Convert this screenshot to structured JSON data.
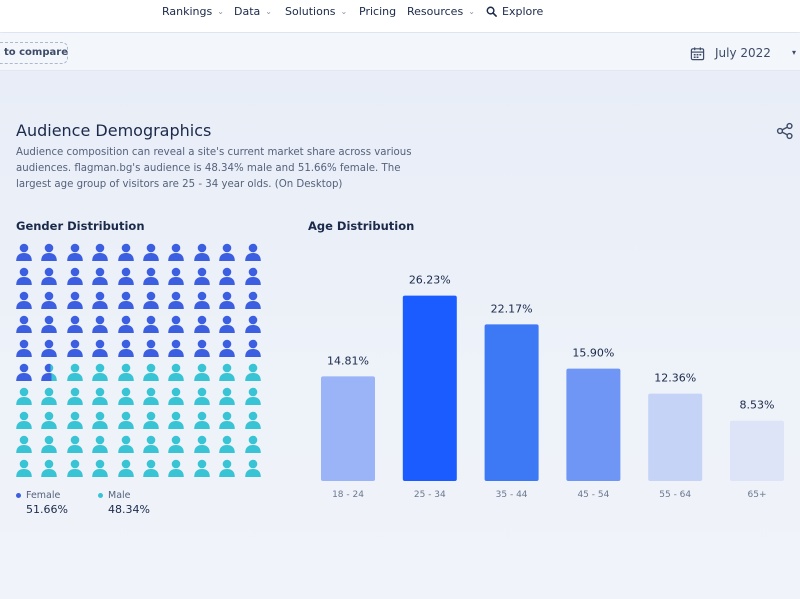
{
  "nav": {
    "items": [
      {
        "label": "Rankings",
        "has_dropdown": true
      },
      {
        "label": "Data",
        "has_dropdown": true
      },
      {
        "label": "Solutions",
        "has_dropdown": true
      },
      {
        "label": "Pricing",
        "has_dropdown": false
      },
      {
        "label": "Resources",
        "has_dropdown": true
      }
    ],
    "explore_label": "Explore",
    "explore_icon": "search-icon"
  },
  "toolbar": {
    "compare_label": "to compare",
    "date_label": "July 2022",
    "date_icon": "calendar-icon"
  },
  "section": {
    "title": "Audience Demographics",
    "description": "Audience composition can reveal a site's current market share across various audiences. flagman.bg's audience is 48.34% male and 51.66% female. The largest age group of visitors are 25 - 34 year olds. (On Desktop)",
    "share_icon": "share-icon"
  },
  "gender": {
    "title": "Gender Distribution",
    "female": {
      "label": "Female",
      "value": "51.66%",
      "share": 0.5166,
      "color": "#3b5fe0"
    },
    "male": {
      "label": "Male",
      "value": "48.34%",
      "share": 0.4834,
      "color": "#38c4d4"
    },
    "icon": "person-icon"
  },
  "age": {
    "title": "Age Distribution",
    "chart_data": {
      "type": "bar",
      "title": "Age Distribution",
      "categories": [
        "18 - 24",
        "25 - 34",
        "35 - 44",
        "45 - 54",
        "55 - 64",
        "65+"
      ],
      "values": [
        14.81,
        26.23,
        22.17,
        15.9,
        12.36,
        8.53
      ],
      "labels": [
        "14.81%",
        "26.23%",
        "22.17%",
        "15.90%",
        "12.36%",
        "8.53%"
      ],
      "colors": [
        "#9bb3f7",
        "#1a5cff",
        "#3d78f5",
        "#6f96f5",
        "#c5d3f7",
        "#dde4f7"
      ],
      "ylim": [
        0,
        30
      ],
      "grid": false,
      "legend": "none"
    }
  }
}
